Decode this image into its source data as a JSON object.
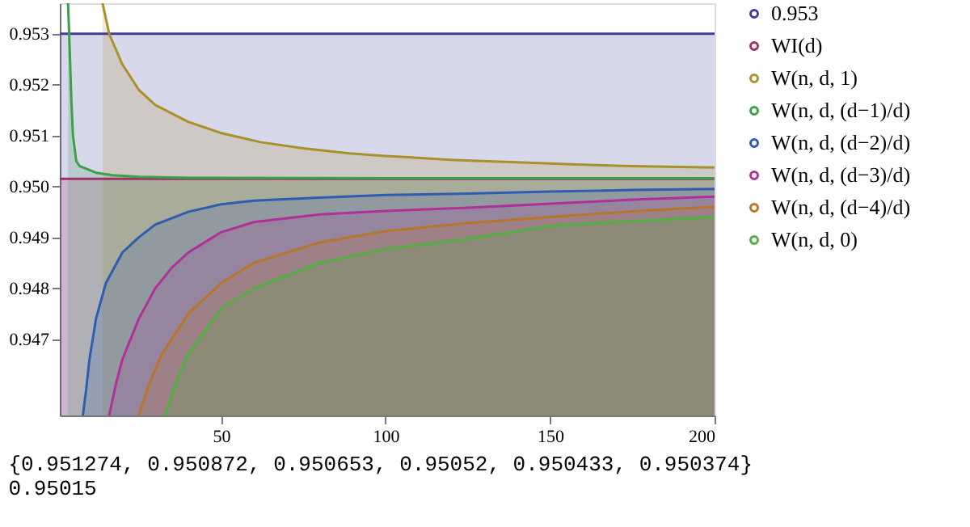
{
  "chart_data": {
    "type": "area",
    "xlim": [
      1,
      200
    ],
    "ylim": [
      0.9455,
      0.9536
    ],
    "xticks": [
      50,
      100,
      150,
      200
    ],
    "yticks": [
      0.947,
      0.948,
      0.949,
      {
        "value": 0.95,
        "label": "0.950"
      },
      0.951,
      0.952,
      0.953
    ],
    "grid": false,
    "legend": "right",
    "line_style": "solid",
    "series": [
      {
        "name": "0.953",
        "color": "#3e3e9a",
        "x": [
          1,
          200
        ],
        "values": [
          0.953,
          0.953
        ]
      },
      {
        "name": "WI(d)",
        "color": "#a0306a",
        "x": [
          1,
          200
        ],
        "values": [
          0.95015,
          0.95015
        ]
      },
      {
        "name": "W(n, d, 1)",
        "color": "#a8902a",
        "x": [
          14,
          16,
          20,
          25,
          30,
          40,
          50,
          62,
          75,
          89,
          100,
          121,
          150,
          158,
          175,
          200
        ],
        "values": [
          0.9536,
          0.953,
          0.9524,
          0.9519,
          0.9516,
          0.95127,
          0.95105,
          0.95087,
          0.95075,
          0.95065,
          0.9506,
          0.95052,
          0.95045,
          0.95043,
          0.9504,
          0.95037
        ]
      },
      {
        "name": "W(n, d, (d−1)/d)",
        "color": "#3aa04a",
        "x": [
          3.5,
          4,
          4.5,
          5,
          6,
          7,
          9,
          12,
          17,
          25,
          40,
          100,
          200
        ],
        "values": [
          0.9536,
          0.9527,
          0.9517,
          0.951,
          0.9505,
          0.9504,
          0.95035,
          0.95027,
          0.95022,
          0.95019,
          0.95017,
          0.95016,
          0.95016
        ]
      },
      {
        "name": "W(n, d, (d−2)/d)",
        "color": "#2f5cb0",
        "x": [
          8,
          9,
          10,
          12,
          15,
          20,
          25,
          30,
          40,
          50,
          60,
          80,
          100,
          125,
          150,
          175,
          200
        ],
        "values": [
          0.9455,
          0.946,
          0.9466,
          0.9474,
          0.9481,
          0.9487,
          0.949,
          0.94925,
          0.9495,
          0.94965,
          0.94972,
          0.94978,
          0.94983,
          0.94986,
          0.9499,
          0.94993,
          0.94995
        ]
      },
      {
        "name": "W(n, d, (d−3)/d)",
        "color": "#b0309a",
        "x": [
          16,
          18,
          20,
          25,
          30,
          35,
          40,
          50,
          60,
          80,
          100,
          125,
          150,
          175,
          200
        ],
        "values": [
          0.9455,
          0.9461,
          0.9466,
          0.9474,
          0.948,
          0.9484,
          0.9487,
          0.9491,
          0.9493,
          0.94945,
          0.94952,
          0.94958,
          0.94966,
          0.94974,
          0.9498
        ]
      },
      {
        "name": "W(n, d, (d−4)/d)",
        "color": "#b8742a",
        "x": [
          25,
          28,
          32,
          40,
          50,
          60,
          80,
          100,
          125,
          150,
          175,
          200
        ],
        "values": [
          0.9455,
          0.9461,
          0.9467,
          0.9475,
          0.9481,
          0.9485,
          0.9489,
          0.94912,
          0.94928,
          0.9494,
          0.94951,
          0.9496
        ]
      },
      {
        "name": "W(n, d, 0)",
        "color": "#50b040",
        "x": [
          33,
          36,
          40,
          50,
          60,
          80,
          100,
          125,
          150,
          175,
          200
        ],
        "values": [
          0.9455,
          0.9461,
          0.9467,
          0.9476,
          0.948,
          0.9485,
          0.94877,
          0.94897,
          0.94922,
          0.94932,
          0.9494
        ]
      }
    ],
    "annotations": [
      "{0.951274, 0.950872, 0.950653, 0.95052, 0.950433, 0.950374}",
      "0.95015"
    ]
  }
}
